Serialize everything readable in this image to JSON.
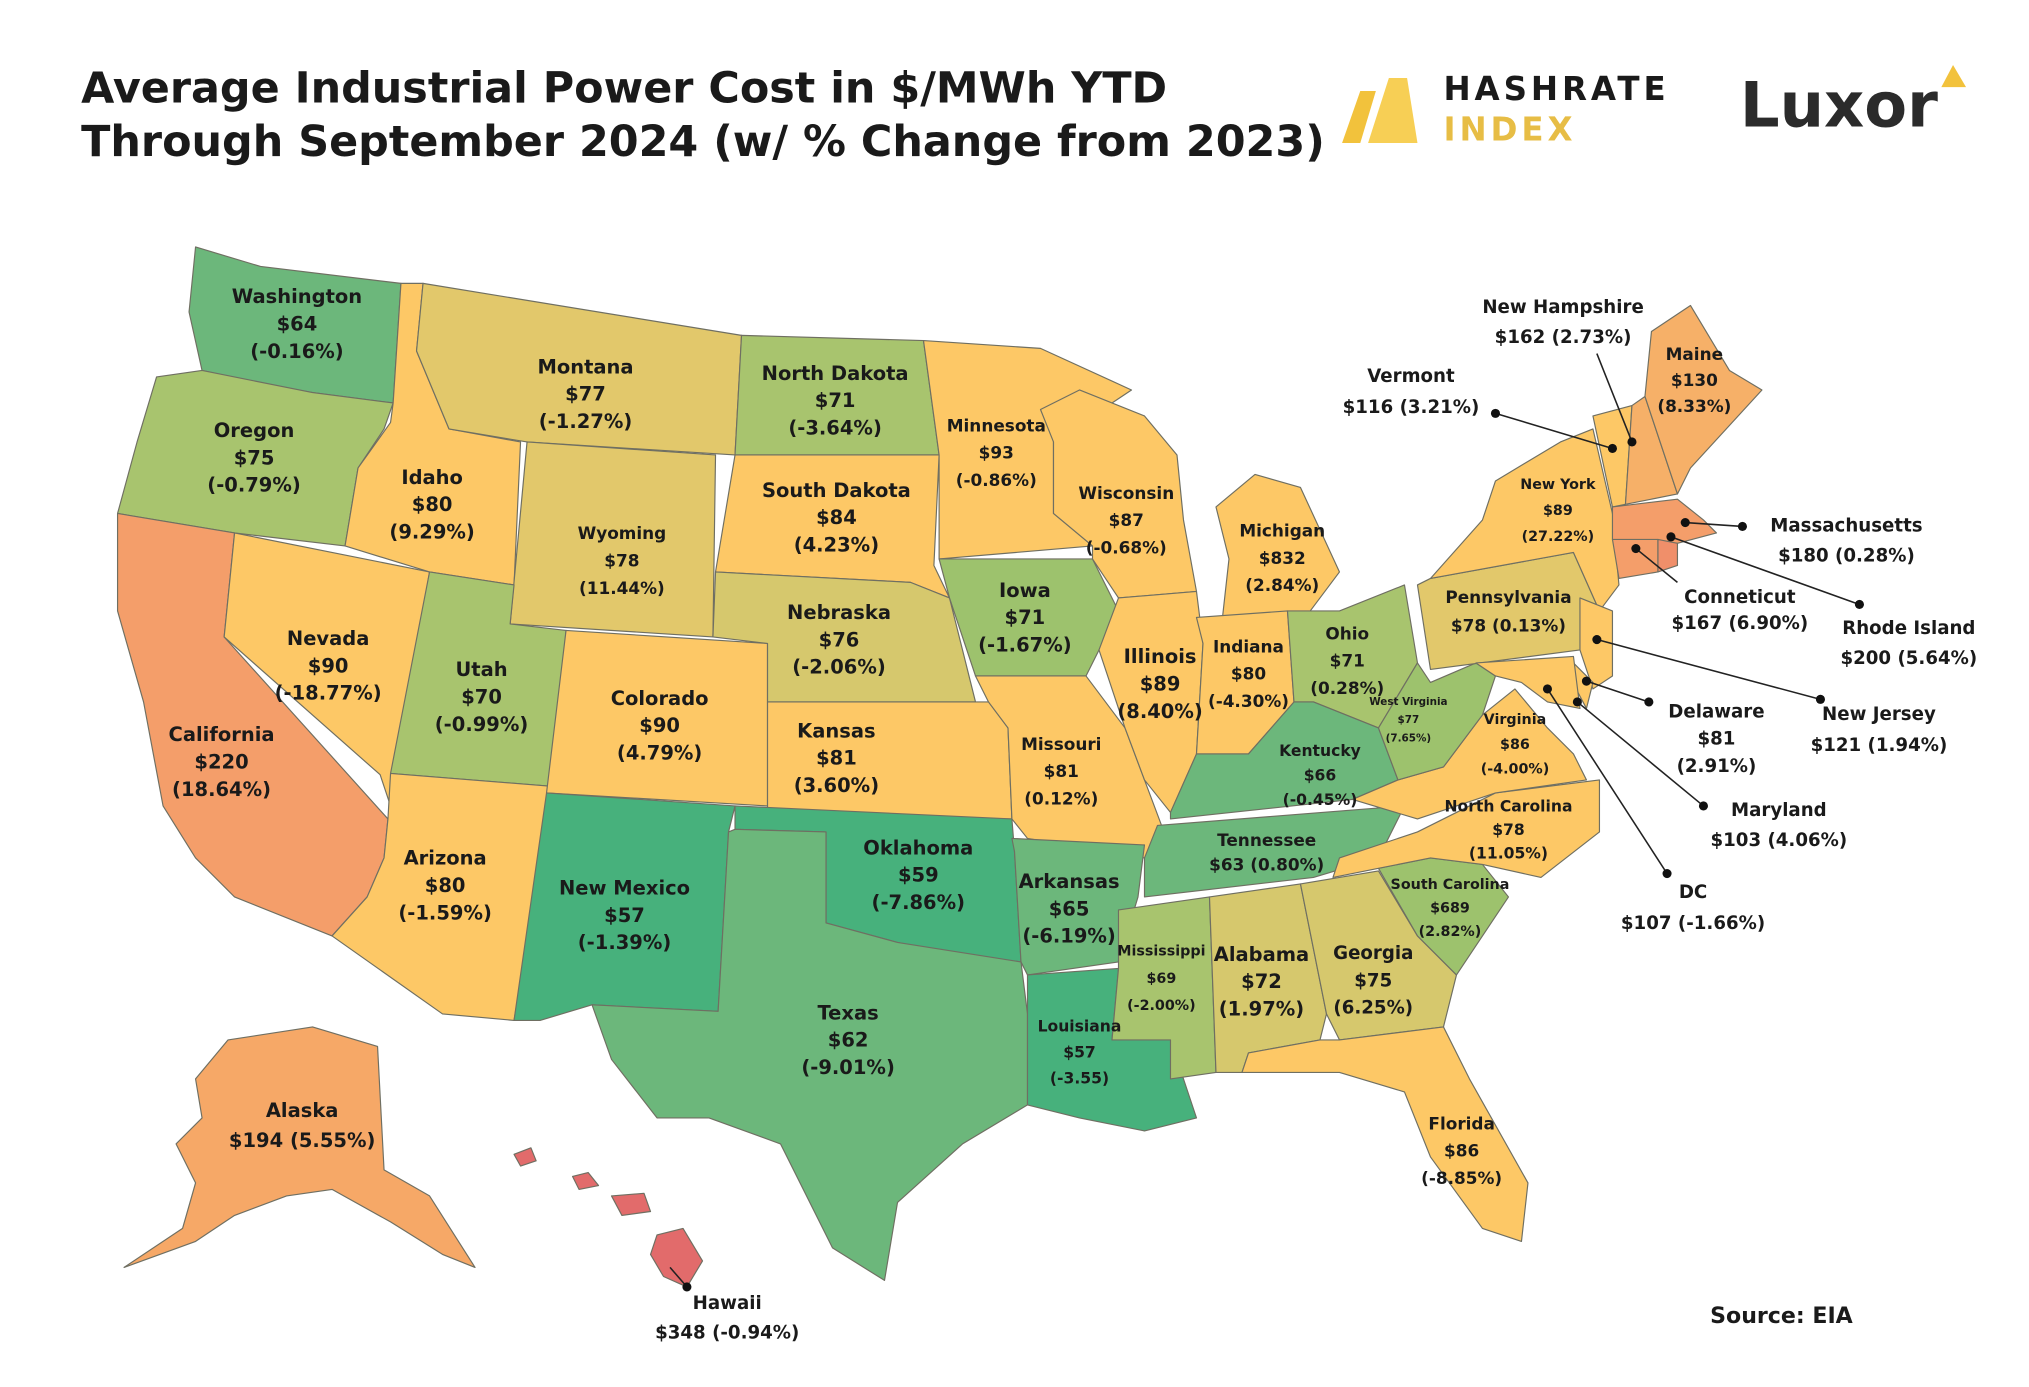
{
  "header": {
    "title": [
      "Average Industrial Power Cost in $/MWh YTD",
      "Through September 2024 (w/ % Change from 2023)"
    ],
    "logos": [
      "HASHRATE",
      "INDEX",
      "Luxor"
    ]
  },
  "states": [
    {
      "name": "Washington",
      "value": "$64",
      "change": "(-0.16%)"
    },
    {
      "name": "Oregon",
      "value": "$75",
      "change": "(-0.79%)"
    },
    {
      "name": "California",
      "value": "$220",
      "change": "(18.64%)"
    },
    {
      "name": "Nevada",
      "value": "$90",
      "change": "(-18.77%)"
    },
    {
      "name": "Idaho",
      "value": "$80",
      "change": "(9.29%)"
    },
    {
      "name": "Montana",
      "value": "$77",
      "change": "(-1.27%)"
    },
    {
      "name": "Wyoming",
      "value": "$78",
      "change": "(11.44%)"
    },
    {
      "name": "Utah",
      "value": "$70",
      "change": "(-0.99%)"
    },
    {
      "name": "Arizona",
      "value": "$80",
      "change": "(-1.59%)"
    },
    {
      "name": "Colorado",
      "value": "$90",
      "change": "(4.79%)"
    },
    {
      "name": "New Mexico",
      "value": "$57",
      "change": "(-1.39%)"
    },
    {
      "name": "North Dakota",
      "value": "$71",
      "change": "(-3.64%)"
    },
    {
      "name": "South Dakota",
      "value": "$84",
      "change": "(4.23%)"
    },
    {
      "name": "Nebraska",
      "value": "$76",
      "change": "(-2.06%)"
    },
    {
      "name": "Kansas",
      "value": "$81",
      "change": "(3.60%)"
    },
    {
      "name": "Oklahoma",
      "value": "$59",
      "change": "(-7.86%)"
    },
    {
      "name": "Texas",
      "value": "$62",
      "change": "(-9.01%)"
    },
    {
      "name": "Minnesota",
      "value": "$93",
      "change": "(-0.86%)"
    },
    {
      "name": "Iowa",
      "value": "$71",
      "change": "(-1.67%)"
    },
    {
      "name": "Missouri",
      "value": "$81",
      "change": "(0.12%)"
    },
    {
      "name": "Arkansas",
      "value": "$65",
      "change": "(-6.19%)"
    },
    {
      "name": "Louisiana",
      "value": "$57",
      "change": "(-3.55)"
    },
    {
      "name": "Wisconsin",
      "value": "$87",
      "change": "(-0.68%)"
    },
    {
      "name": "Illinois",
      "value": "$89",
      "change": "(8.40%)"
    },
    {
      "name": "Michigan",
      "value": "$832",
      "change": "(2.84%)"
    },
    {
      "name": "Indiana",
      "value": "$80",
      "change": "(-4.30%)"
    },
    {
      "name": "Ohio",
      "value": "$71",
      "change": "(0.28%)"
    },
    {
      "name": "Kentucky",
      "value": "$66",
      "change": "(-0.45%)"
    },
    {
      "name": "Tennessee",
      "value": "$63",
      "change": "(0.80%)"
    },
    {
      "name": "Mississippi",
      "value": "$69",
      "change": "(-2.00%)"
    },
    {
      "name": "Alabama",
      "value": "$72",
      "change": "(1.97%)"
    },
    {
      "name": "Georgia",
      "value": "$75",
      "change": "(6.25%)"
    },
    {
      "name": "Florida",
      "value": "$86",
      "change": "(-8.85%)"
    },
    {
      "name": "South Carolina",
      "value": "$689",
      "change": "(2.82%)"
    },
    {
      "name": "North Carolina",
      "value": "$78",
      "change": "(11.05%)"
    },
    {
      "name": "Virginia",
      "value": "$86",
      "change": "(-4.00%)"
    },
    {
      "name": "West Virginia",
      "value": "$77",
      "change": "(7.65%)"
    },
    {
      "name": "Pennsylvania",
      "value": "$78",
      "change": "(0.13%)"
    },
    {
      "name": "New York",
      "value": "$89",
      "change": "(27.22%)"
    },
    {
      "name": "New Jersey",
      "value": "$121",
      "change": "(1.94%)"
    },
    {
      "name": "Delaware",
      "value": "$81",
      "change": "(2.91%)"
    },
    {
      "name": "Maryland",
      "value": "$103",
      "change": "(4.06%)"
    },
    {
      "name": "DC",
      "value": "$107",
      "change": "(-1.66%)"
    },
    {
      "name": "Vermont",
      "value": "$116",
      "change": "(3.21%)"
    },
    {
      "name": "New Hampshire",
      "value": "$162",
      "change": "(2.73%)"
    },
    {
      "name": "Maine",
      "value": "$130",
      "change": "(8.33%)"
    },
    {
      "name": "Massachusetts",
      "value": "$180",
      "change": "(0.28%)"
    },
    {
      "name": "Conneticut",
      "value": "$167",
      "change": "(6.90%)"
    },
    {
      "name": "Rhode Island",
      "value": "$200",
      "change": "(5.64%)"
    },
    {
      "name": "Alaska",
      "value": "$194",
      "change": "(5.55%)"
    },
    {
      "name": "Hawaii",
      "value": "$348",
      "change": "(-0.94%)"
    }
  ],
  "source": "Source: EIA"
}
